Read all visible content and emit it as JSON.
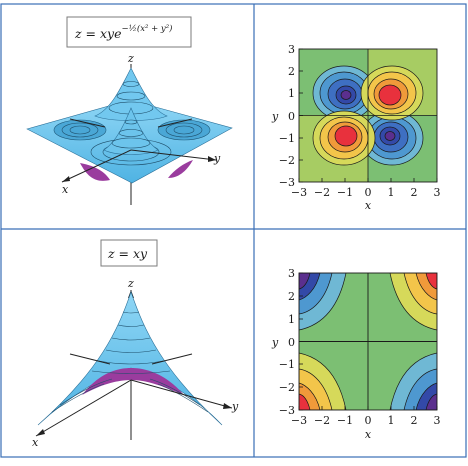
{
  "panels": [
    {
      "equation": {
        "base": "z = xye",
        "exponent": "−½(x² + y²)"
      },
      "surface_axes": {
        "z": "z",
        "y": "y",
        "x": "x"
      },
      "contour_axes": {
        "xlabel": "x",
        "ylabel": "y",
        "xticks": [
          "−3",
          "−2",
          "−1",
          "0",
          "1",
          "2",
          "3"
        ],
        "yticks": [
          "3",
          "2",
          "1",
          "0",
          "−1",
          "−2",
          "−3"
        ]
      }
    },
    {
      "equation": {
        "base": "z = xy",
        "exponent": ""
      },
      "surface_axes": {
        "z": "z",
        "y": "y",
        "x": "x"
      },
      "contour_axes": {
        "xlabel": "x",
        "ylabel": "y",
        "xticks": [
          "−3",
          "−2",
          "−1",
          "0",
          "1",
          "2",
          "3"
        ],
        "yticks": [
          "3",
          "2",
          "1",
          "0",
          "−1",
          "−2",
          "−3"
        ]
      }
    }
  ],
  "colors": {
    "grid_lines": "#3a6fb6",
    "surface": "#67c3ee",
    "surface_under": "#9a3c9e",
    "contour_peak_pos": "#e8313d",
    "contour_peak_neg": "#2c3f9e",
    "contour_mid": "#7cbf73"
  }
}
